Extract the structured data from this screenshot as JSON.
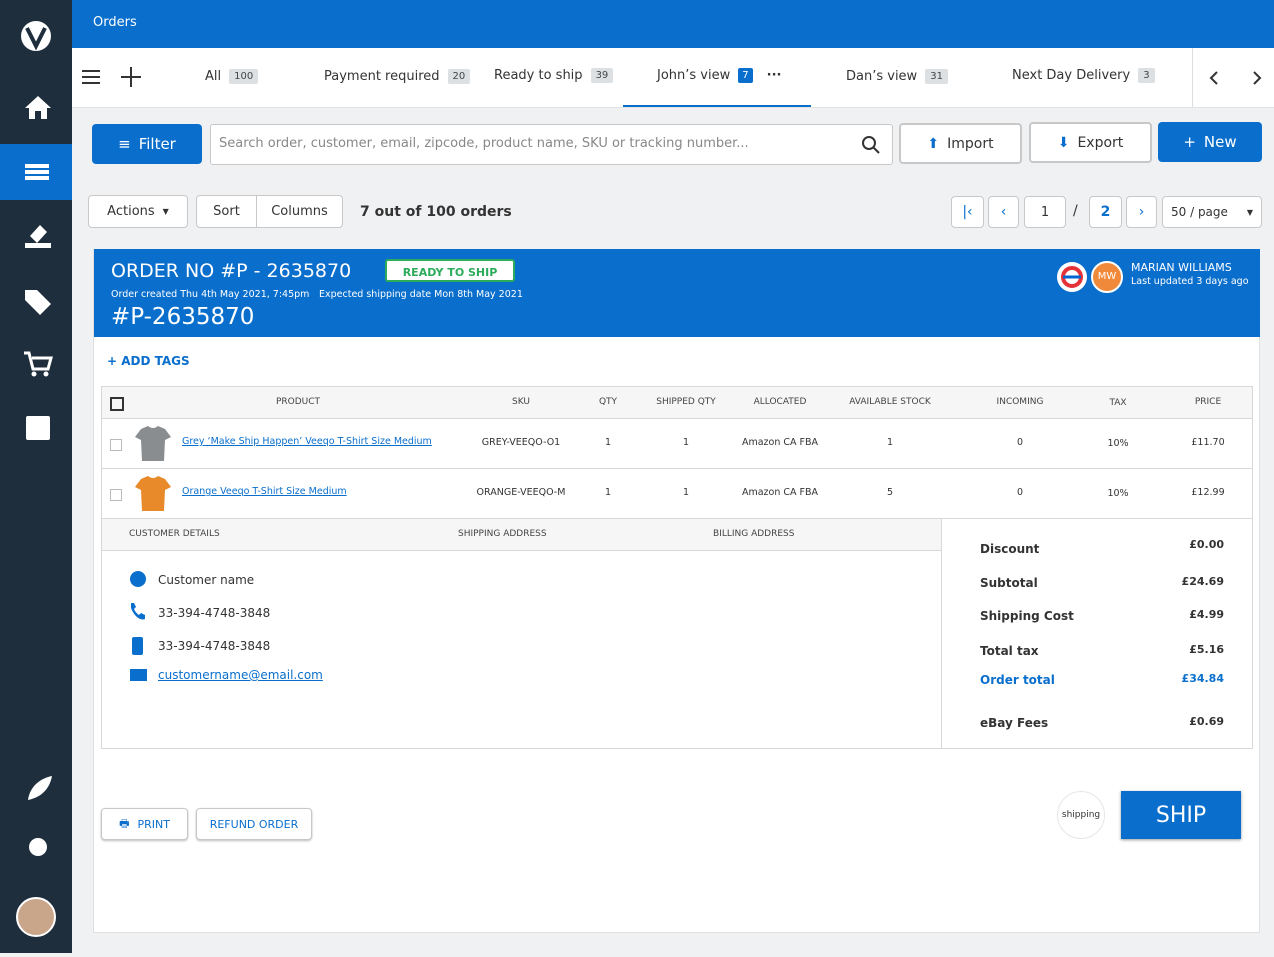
{
  "header": {
    "title": "Orders"
  },
  "tabs": [
    {
      "label": "All",
      "count": 100
    },
    {
      "label": "Payment required",
      "count": 20
    },
    {
      "label": "Ready to ship",
      "count": 39
    },
    {
      "label": "John’s view",
      "count": 7
    },
    {
      "label": "Dan’s view",
      "count": 31
    },
    {
      "label": "Next Day Delivery",
      "count": 3
    }
  ],
  "toolbar": {
    "filter": "Filter",
    "search_placeholder": "Search order, customer, email, zipcode, product name, SKU or tracking number...",
    "import": "Import",
    "export": "Export",
    "new": "New"
  },
  "list_bar": {
    "actions": "Actions",
    "sort": "Sort",
    "columns": "Columns",
    "summary": "7 out of 100 orders",
    "page_current": 1,
    "page_separator": "/",
    "page_total": 2,
    "page_size": "50 / page"
  },
  "order": {
    "title": "ORDER NO #P - 2635870",
    "status": "READY TO SHIP",
    "created": "Order created Thu 4th May 2021, 7:45pm",
    "expected": "Expected shipping date Mon 8th May 2021",
    "reference": "#P-2635870",
    "initials": "MW",
    "user": "MARIAN WILLIAMS",
    "updated": "Last updated 3 days ago",
    "add_tags": "ADD TAGS"
  },
  "items": {
    "columns": [
      "PRODUCT",
      "SKU",
      "QTY",
      "SHIPPED QTY",
      "ALLOCATED",
      "AVAILABLE STOCK",
      "INCOMING",
      "TAX",
      "PRICE"
    ],
    "rows": [
      [
        "Grey ‘Make Ship Happen’ Veeqo T-Shirt Size Medium",
        "GREY-VEEQO-O1",
        1,
        1,
        "Amazon CA FBA",
        1,
        0,
        "10%",
        "£11.70"
      ],
      [
        "Orange Veeqo T-Shirt Size Medium",
        "ORANGE-VEEQO-M",
        1,
        1,
        "Amazon CA FBA",
        5,
        0,
        "10%",
        "£12.99"
      ]
    ]
  },
  "customer": {
    "headers": [
      "CUSTOMER DETAILS",
      "SHIPPING ADDRESS",
      "BILLING ADDRESS"
    ],
    "name": "Customer name",
    "phone": "33-394-4748-3848",
    "mobile": "33-394-4748-3848",
    "email": "customername@email.com"
  },
  "totals": [
    {
      "label": "Discount",
      "value": "£0.00"
    },
    {
      "label": "Subtotal",
      "value": "£24.69"
    },
    {
      "label": "Shipping Cost",
      "value": "£4.99"
    },
    {
      "label": "Total tax",
      "value": "£5.16"
    },
    {
      "label": "Order total",
      "value": "£34.84"
    },
    {
      "label": "eBay Fees",
      "value": "£0.69"
    }
  ],
  "footer": {
    "print": "PRINT",
    "refund": "REFUND ORDER",
    "shipping_logo": "shipping",
    "ship": "SHIP"
  }
}
